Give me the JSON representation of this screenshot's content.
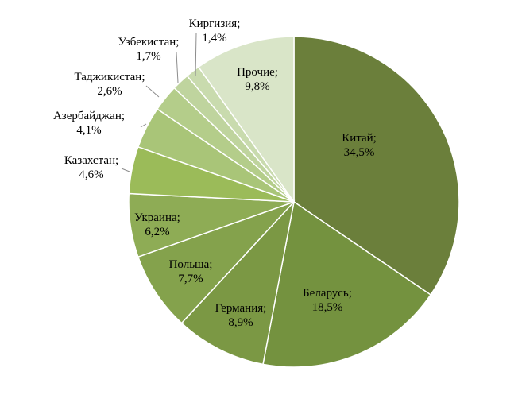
{
  "chart_data": {
    "type": "pie",
    "title": "",
    "start_angle_deg": 0,
    "direction": "clockwise",
    "legend": "none",
    "slices": [
      {
        "name": "Китай;",
        "value": 34.5,
        "label": "34,5%",
        "color": "#6b7f3b",
        "label_pos": "inside"
      },
      {
        "name": "Беларусь;",
        "value": 18.5,
        "label": "18,5%",
        "color": "#74923f",
        "label_pos": "inside"
      },
      {
        "name": "Германия;",
        "value": 8.9,
        "label": "8,9%",
        "color": "#7b9844",
        "label_pos": "inside"
      },
      {
        "name": "Польша;",
        "value": 7.7,
        "label": "7,7%",
        "color": "#84a24c",
        "label_pos": "inside"
      },
      {
        "name": "Украина;",
        "value": 6.2,
        "label": "6,2%",
        "color": "#8eac55",
        "label_pos": "inside"
      },
      {
        "name": "Казахстан;",
        "value": 4.6,
        "label": "4,6%",
        "color": "#9bbb59",
        "label_pos": "outside"
      },
      {
        "name": "Азербайджан;",
        "value": 4.1,
        "label": "4,1%",
        "color": "#a9c578",
        "label_pos": "outside"
      },
      {
        "name": "Таджикистан;",
        "value": 2.6,
        "label": "2,6%",
        "color": "#b4cd8a",
        "label_pos": "outside"
      },
      {
        "name": "Узбекистан;",
        "value": 1.7,
        "label": "1,7%",
        "color": "#bfd49e",
        "label_pos": "outside"
      },
      {
        "name": "Киргизия;",
        "value": 1.4,
        "label": "1,4%",
        "color": "#c9dbae",
        "label_pos": "outside"
      },
      {
        "name": "Прочие;",
        "value": 9.8,
        "label": "9,8%",
        "color": "#d9e5c8",
        "label_pos": "inside"
      }
    ]
  }
}
